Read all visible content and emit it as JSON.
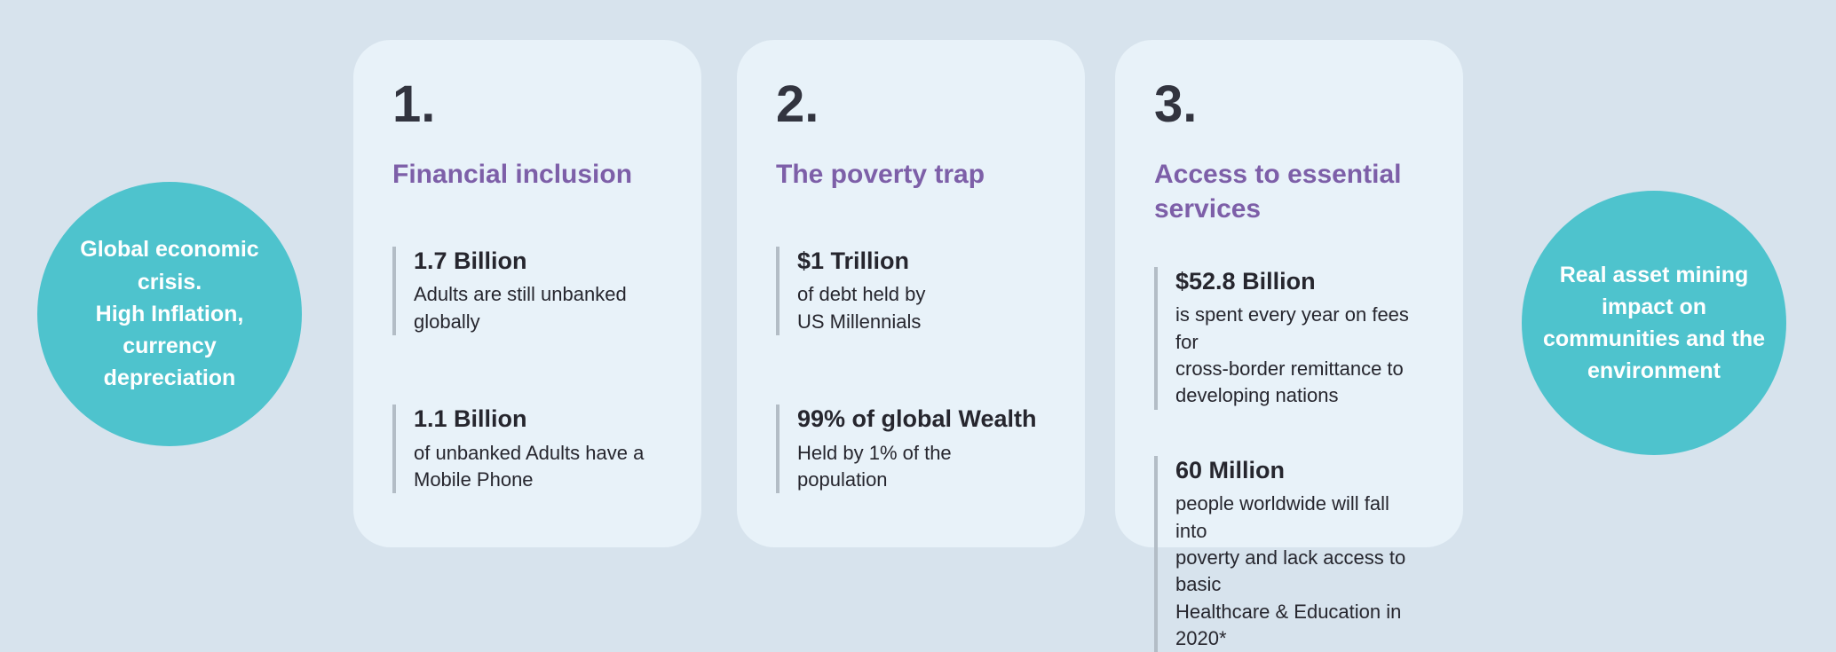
{
  "left_circle": {
    "text": "Global economic\ncrisis.\nHigh Inflation,\ncurrency\ndepreciation"
  },
  "right_circle": {
    "text": "Real asset  mining\nimpact on\ncommunities and the\nenvironment"
  },
  "colors": {
    "background": "#d7e3ed",
    "card_background": "#e8f2f9",
    "circle_teal": "#4ec3cd",
    "title_purple": "#7d5fa8",
    "text_dark": "#26262e",
    "stat_bar_gray": "#b3bdc6"
  },
  "cards": [
    {
      "number": "1.",
      "title": "Financial inclusion",
      "stats": [
        {
          "value": "1.7 Billion",
          "description": "Adults are still unbanked\nglobally"
        },
        {
          "value": "1.1 Billion",
          "description": "of unbanked Adults have a\nMobile Phone"
        }
      ]
    },
    {
      "number": "2.",
      "title": "The poverty trap",
      "stats": [
        {
          "value": "$1 Trillion",
          "description": "of debt held by\nUS Millennials"
        },
        {
          "value": "99% of global Wealth",
          "description": "Held by 1% of the\npopulation"
        }
      ]
    },
    {
      "number": "3.",
      "title": "Access to essential\nservices",
      "stats": [
        {
          "value": "$52.8 Billion",
          "description": "is spent every year on fees for\ncross-border remittance to\ndeveloping nations"
        },
        {
          "value": "60 Million",
          "description": "people worldwide will fall into\npoverty and lack access to basic\nHealthcare & Education in 2020*"
        }
      ]
    }
  ]
}
